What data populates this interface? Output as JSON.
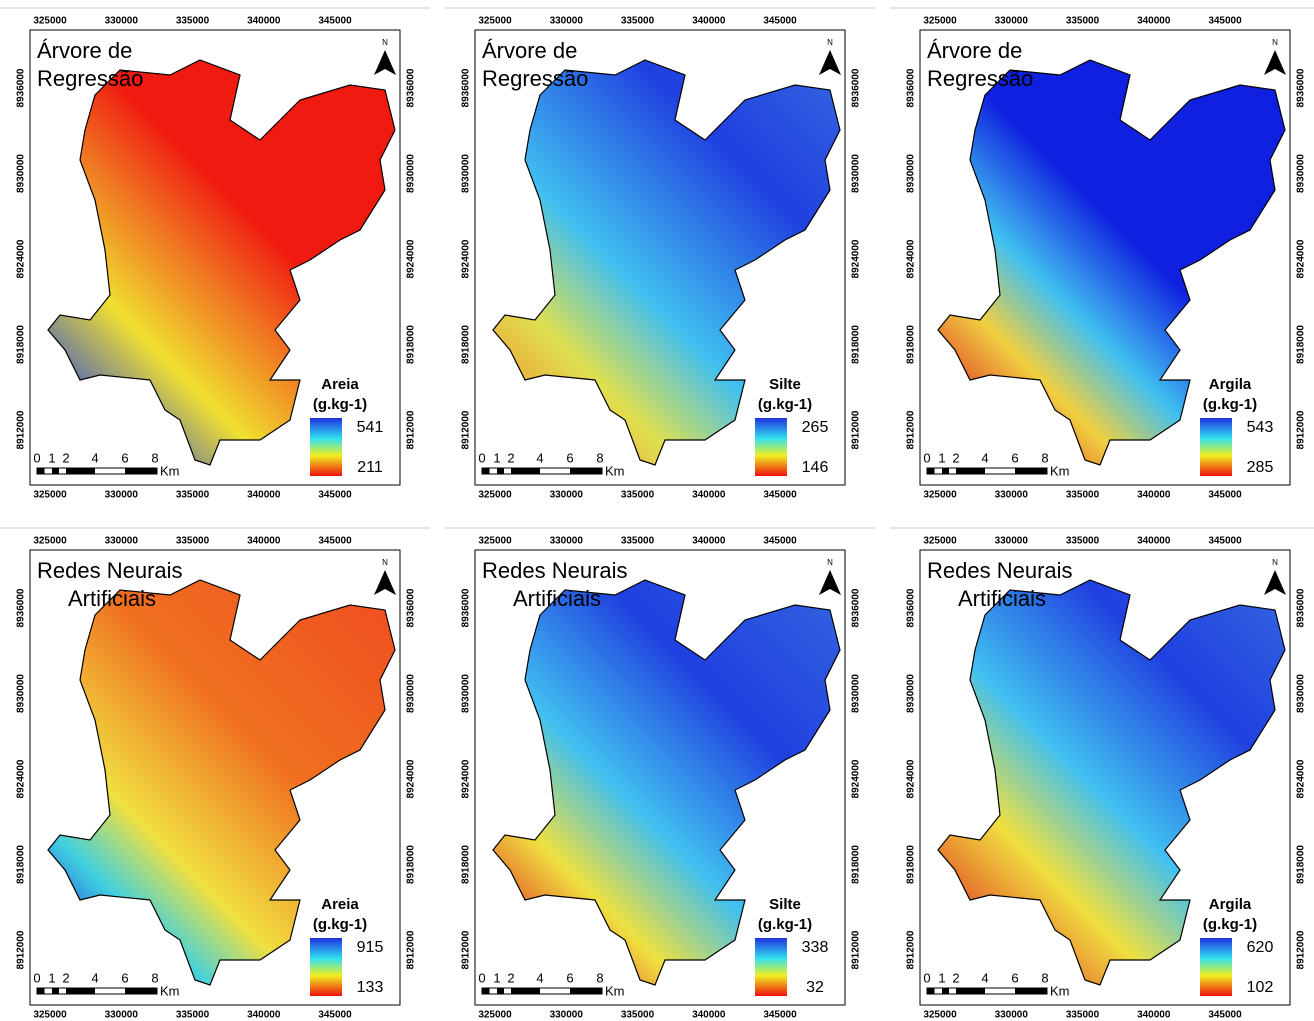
{
  "x_ticks": [
    325000,
    330000,
    335000,
    340000,
    345000
  ],
  "y_ticks": [
    8936000,
    8930000,
    8924000,
    8918000,
    8912000
  ],
  "scale_labels": [
    0,
    1,
    2,
    4,
    6,
    8
  ],
  "scale_unit": "Km",
  "north": "N",
  "panels": [
    {
      "title": [
        "Árvore de",
        "Regressão"
      ],
      "legend_title": "Areia",
      "legend_unit": "(g.kg-1)",
      "legend_max": 541,
      "legend_min": 211
    },
    {
      "title": [
        "Árvore de",
        "Regressão"
      ],
      "legend_title": "Silte",
      "legend_unit": "(g.kg-1)",
      "legend_max": 265,
      "legend_min": 146
    },
    {
      "title": [
        "Árvore de",
        "Regressão"
      ],
      "legend_title": "Argila",
      "legend_unit": "(g.kg-1)",
      "legend_max": 543,
      "legend_min": 285
    },
    {
      "title": [
        "Redes Neurais",
        "Artificiais"
      ],
      "legend_title": "Areia",
      "legend_unit": "(g.kg-1)",
      "legend_max": 915,
      "legend_min": 133
    },
    {
      "title": [
        "Redes Neurais",
        "Artificiais"
      ],
      "legend_title": "Silte",
      "legend_unit": "(g.kg-1)",
      "legend_max": 338,
      "legend_min": 32
    },
    {
      "title": [
        "Redes Neurais",
        "Artificiais"
      ],
      "legend_title": "Argila",
      "legend_unit": "(g.kg-1)",
      "legend_max": 620,
      "legend_min": 102
    }
  ]
}
